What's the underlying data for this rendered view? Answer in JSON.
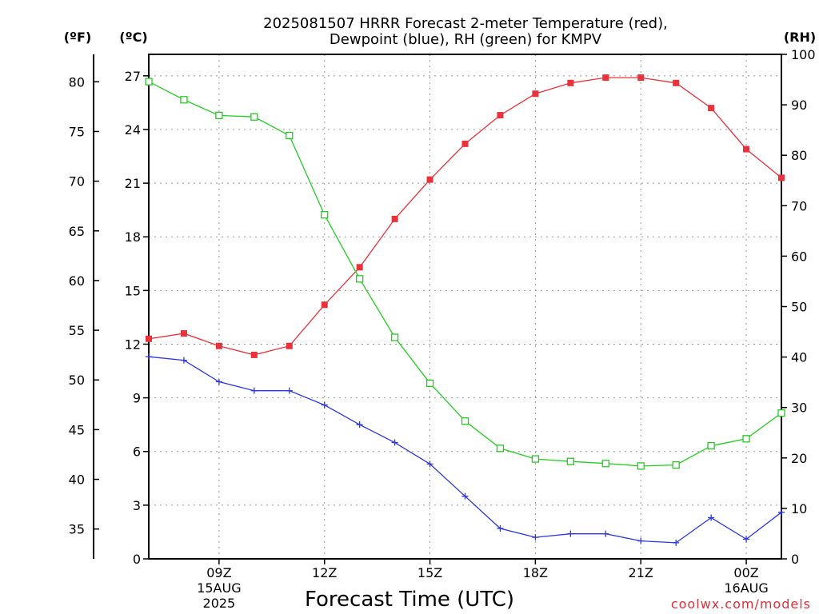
{
  "chart_data": {
    "type": "line",
    "title_line1": "2025081507 HRRR Forecast 2-meter Temperature (red),",
    "title_line2": "Dewpoint (blue), RH (green) for KMPV",
    "left_axis_f_unit": "(ºF)",
    "left_axis_c_unit": "(ºC)",
    "right_axis_unit": "(RH)",
    "xlabel": "Forecast Time (UTC)",
    "credit": "coolwx.com/models",
    "x_hours": [
      7,
      8,
      9,
      10,
      11,
      12,
      13,
      14,
      15,
      16,
      17,
      18,
      19,
      20,
      21,
      22,
      23,
      24,
      25
    ],
    "xlim": [
      7,
      25
    ],
    "x_ticks": [
      {
        "hour": 9,
        "lines": [
          "09Z",
          "15AUG",
          "2025"
        ]
      },
      {
        "hour": 12,
        "lines": [
          "12Z"
        ]
      },
      {
        "hour": 15,
        "lines": [
          "15Z"
        ]
      },
      {
        "hour": 18,
        "lines": [
          "18Z"
        ]
      },
      {
        "hour": 21,
        "lines": [
          "21Z"
        ]
      },
      {
        "hour": 24,
        "lines": [
          "00Z",
          "16AUG"
        ]
      }
    ],
    "celsius_ticks": [
      "0",
      "3",
      "6",
      "9",
      "12",
      "15",
      "18",
      "21",
      "24",
      "27"
    ],
    "celsius_range": [
      0,
      28.2
    ],
    "fahrenheit_ticks": [
      "35",
      "40",
      "45",
      "50",
      "55",
      "60",
      "65",
      "70",
      "75",
      "80"
    ],
    "rh_ticks": [
      "0",
      "10",
      "20",
      "30",
      "40",
      "50",
      "60",
      "70",
      "80",
      "90",
      "100"
    ],
    "rh_range": [
      0,
      100
    ],
    "grid": true,
    "series": [
      {
        "name": "Temperature (red)",
        "axis": "celsius",
        "color": "#e8323c",
        "marker": "filled-square",
        "values": [
          12.3,
          12.6,
          11.9,
          11.4,
          11.9,
          14.2,
          16.3,
          19.0,
          21.2,
          23.2,
          24.8,
          26.0,
          26.6,
          26.9,
          26.9,
          26.6,
          25.2,
          22.9,
          21.3
        ]
      },
      {
        "name": "Dewpoint (blue)",
        "axis": "celsius",
        "color": "#2a36e8",
        "marker": "plus",
        "values": [
          11.3,
          11.1,
          9.9,
          9.4,
          9.4,
          8.6,
          7.5,
          6.5,
          5.3,
          3.5,
          1.7,
          1.2,
          1.4,
          1.4,
          1.0,
          0.9,
          2.3,
          1.1,
          2.6
        ]
      },
      {
        "name": "RH (green)",
        "axis": "rh",
        "color": "#22cc22",
        "marker": "open-square",
        "values": [
          94.6,
          91.0,
          87.9,
          87.6,
          83.9,
          68.2,
          55.5,
          43.9,
          34.8,
          27.3,
          21.9,
          19.8,
          19.3,
          18.9,
          18.4,
          18.6,
          22.4,
          23.8,
          28.9
        ]
      }
    ]
  }
}
